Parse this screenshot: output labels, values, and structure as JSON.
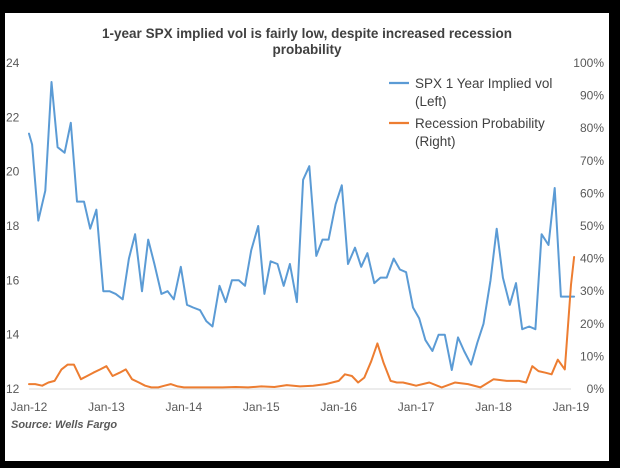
{
  "chart_data": {
    "type": "line",
    "title": "1-year SPX implied vol is fairly low, despite increased recession probability",
    "title_lines": [
      "1-year SPX implied vol is fairly low, despite increased recession",
      "probability"
    ],
    "source": "Source: Wells Fargo",
    "x_tick_labels": [
      "Jan-12",
      "Jan-13",
      "Jan-14",
      "Jan-15",
      "Jan-16",
      "Jan-17",
      "Jan-18",
      "Jan-19"
    ],
    "y_left": {
      "min": 12,
      "max": 24,
      "ticks": [
        12,
        14,
        16,
        18,
        20,
        22,
        24
      ]
    },
    "y_right": {
      "min": 0,
      "max": 100,
      "ticks": [
        "0%",
        "10%",
        "20%",
        "30%",
        "40%",
        "50%",
        "60%",
        "70%",
        "80%",
        "90%",
        "100%"
      ]
    },
    "legend_position": "top-right",
    "series": [
      {
        "name": "SPX 1 Year Implied vol (Left)",
        "legend_lines": [
          "SPX 1 Year Implied vol",
          "(Left)"
        ],
        "axis": "left",
        "color": "#5b9bd5",
        "x": [
          2012.0,
          2012.04,
          2012.12,
          2012.21,
          2012.29,
          2012.37,
          2012.46,
          2012.54,
          2012.62,
          2012.71,
          2012.79,
          2012.87,
          2012.96,
          2013.04,
          2013.12,
          2013.21,
          2013.29,
          2013.37,
          2013.46,
          2013.54,
          2013.62,
          2013.71,
          2013.79,
          2013.87,
          2013.96,
          2014.04,
          2014.12,
          2014.21,
          2014.29,
          2014.37,
          2014.46,
          2014.54,
          2014.62,
          2014.71,
          2014.79,
          2014.87,
          2014.96,
          2015.04,
          2015.12,
          2015.21,
          2015.29,
          2015.37,
          2015.46,
          2015.54,
          2015.62,
          2015.71,
          2015.79,
          2015.87,
          2015.96,
          2016.04,
          2016.12,
          2016.21,
          2016.29,
          2016.37,
          2016.46,
          2016.54,
          2016.62,
          2016.71,
          2016.79,
          2016.87,
          2016.96,
          2017.04,
          2017.12,
          2017.21,
          2017.29,
          2017.37,
          2017.46,
          2017.54,
          2017.62,
          2017.71,
          2017.79,
          2017.87,
          2017.96,
          2018.04,
          2018.12,
          2018.21,
          2018.29,
          2018.37,
          2018.46,
          2018.54,
          2018.62,
          2018.71,
          2018.79,
          2018.87,
          2018.96,
          2019.04
        ],
        "values": [
          21.4,
          21.0,
          18.2,
          19.3,
          23.3,
          20.9,
          20.7,
          21.8,
          18.9,
          18.9,
          17.9,
          18.6,
          15.6,
          15.6,
          15.5,
          15.3,
          16.8,
          17.7,
          15.6,
          17.5,
          16.6,
          15.5,
          15.6,
          15.3,
          16.5,
          15.1,
          15.0,
          14.9,
          14.5,
          14.3,
          15.8,
          15.2,
          16.0,
          16.0,
          15.8,
          17.1,
          18.0,
          15.5,
          16.7,
          16.6,
          15.8,
          16.6,
          15.2,
          19.7,
          20.2,
          16.9,
          17.5,
          17.5,
          18.8,
          19.5,
          16.6,
          17.2,
          16.5,
          17.0,
          15.9,
          16.1,
          16.1,
          16.8,
          16.4,
          16.3,
          15.0,
          14.6,
          13.8,
          13.4,
          14.0,
          14.0,
          12.7,
          13.9,
          13.4,
          12.9,
          13.7,
          14.4,
          16.0,
          17.9,
          16.1,
          15.1,
          15.9,
          14.2,
          14.3,
          14.2,
          17.7,
          17.3,
          19.4,
          15.4,
          15.4,
          15.4
        ]
      },
      {
        "name": "Recession Probability (Right)",
        "legend_lines": [
          "Recession Probability",
          "(Right)"
        ],
        "axis": "right",
        "color": "#ed7d31",
        "x": [
          2012.0,
          2012.08,
          2012.17,
          2012.25,
          2012.33,
          2012.42,
          2012.5,
          2012.58,
          2012.67,
          2012.75,
          2012.83,
          2012.92,
          2013.0,
          2013.08,
          2013.17,
          2013.25,
          2013.33,
          2013.42,
          2013.5,
          2013.58,
          2013.67,
          2013.75,
          2013.83,
          2013.92,
          2014.0,
          2014.17,
          2014.33,
          2014.5,
          2014.67,
          2014.83,
          2015.0,
          2015.17,
          2015.33,
          2015.5,
          2015.67,
          2015.83,
          2016.0,
          2016.08,
          2016.17,
          2016.25,
          2016.33,
          2016.42,
          2016.5,
          2016.58,
          2016.67,
          2016.75,
          2016.83,
          2016.92,
          2017.0,
          2017.17,
          2017.33,
          2017.5,
          2017.67,
          2017.83,
          2018.0,
          2018.17,
          2018.33,
          2018.42,
          2018.5,
          2018.58,
          2018.67,
          2018.75,
          2018.83,
          2018.92,
          2019.0,
          2019.04
        ],
        "values": [
          1.5,
          1.5,
          1.0,
          2.0,
          2.5,
          6.0,
          7.5,
          7.5,
          3.0,
          4.0,
          5.0,
          6.0,
          7.0,
          4.0,
          5.0,
          6.0,
          3.0,
          2.0,
          1.0,
          0.5,
          0.5,
          1.0,
          1.5,
          0.8,
          0.5,
          0.5,
          0.5,
          0.5,
          0.6,
          0.5,
          0.8,
          0.6,
          1.2,
          0.8,
          1.0,
          1.5,
          2.5,
          4.5,
          4.0,
          2.0,
          3.5,
          8.5,
          14.0,
          8.0,
          2.5,
          2.0,
          2.0,
          1.5,
          1.0,
          2.0,
          0.5,
          2.0,
          1.5,
          0.5,
          3.0,
          2.5,
          2.5,
          2.0,
          7.0,
          5.5,
          5.0,
          4.5,
          9.0,
          6.0,
          32.0,
          40.5
        ]
      }
    ]
  }
}
